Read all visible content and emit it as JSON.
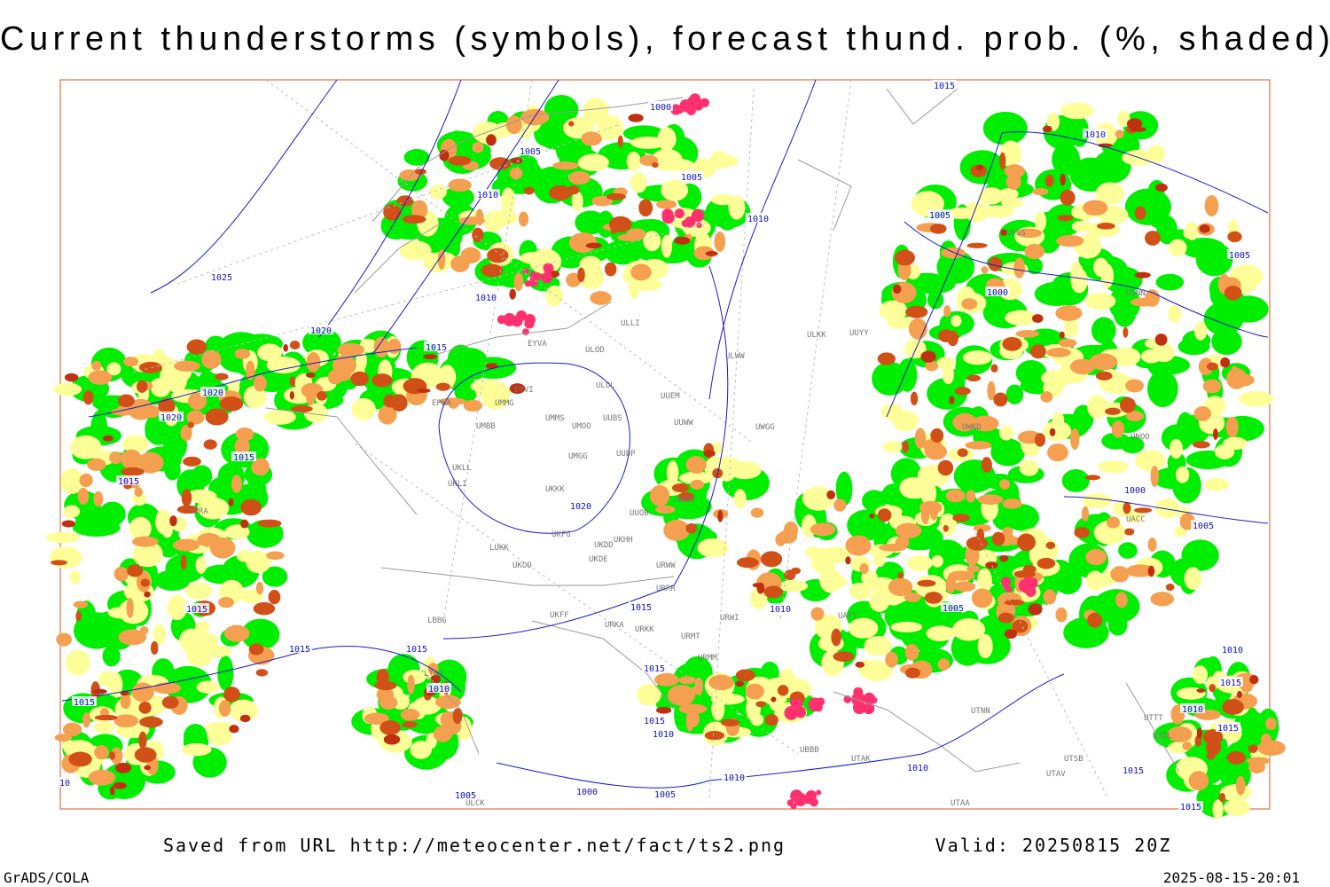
{
  "header": {
    "title": "Current thunderstorms (symbols), forecast thund. prob. (%, shaded)"
  },
  "map": {
    "isobar_labels": [
      "1015",
      "1000",
      "1005",
      "1005",
      "1010",
      "1010",
      "1025",
      "1010",
      "1020",
      "1015",
      "1020",
      "1020",
      "1015",
      "1015",
      "1020",
      "1015",
      "1015",
      "1015",
      "1015",
      "1010",
      "1015",
      "1015",
      "1015",
      "1010",
      "1010",
      "1005",
      "1010",
      "1005",
      "1000",
      "1005",
      "1000",
      "1005",
      "1010",
      "1015",
      "1010",
      "1015",
      "1015",
      "1010",
      "1010",
      "1005",
      "1000",
      "1005",
      "1015",
      "10"
    ],
    "stations": [
      "ULLI",
      "ULOD",
      "ULOL",
      "UUEM",
      "UUYY",
      "ULKK",
      "ULWW",
      "EYVI",
      "EYVA",
      "EPWA",
      "UMMG",
      "UMMS",
      "UMOO",
      "UUBS",
      "UUWW",
      "UWGG",
      "UMBB",
      "UMGG",
      "UUBP",
      "UKKK",
      "UUOB",
      "UUOO",
      "UKLL",
      "UKLI",
      "LIRA",
      "UKFG",
      "UKDD",
      "UKHH",
      "LUKK",
      "UKOO",
      "UKDE",
      "URWW",
      "URRR",
      "UKFF",
      "LBBG",
      "URKA",
      "URKK",
      "URMT",
      "URWI",
      "URMM",
      "LTBA",
      "UTNN",
      "UBBB",
      "UTAK",
      "UTAV",
      "UTSB",
      "UTAA",
      "UTDL",
      "UTTT",
      "UACC",
      "UNOO",
      "USSS",
      "USNN",
      "UWKD",
      "UATT",
      "ULCK"
    ]
  },
  "footer": {
    "source": "Saved from URL http://meteocenter.net/fact/ts2.png",
    "valid": "Valid: 20250815 20Z",
    "software": "GrADS/COLA",
    "timestamp": "2025-08-15-20:01"
  }
}
